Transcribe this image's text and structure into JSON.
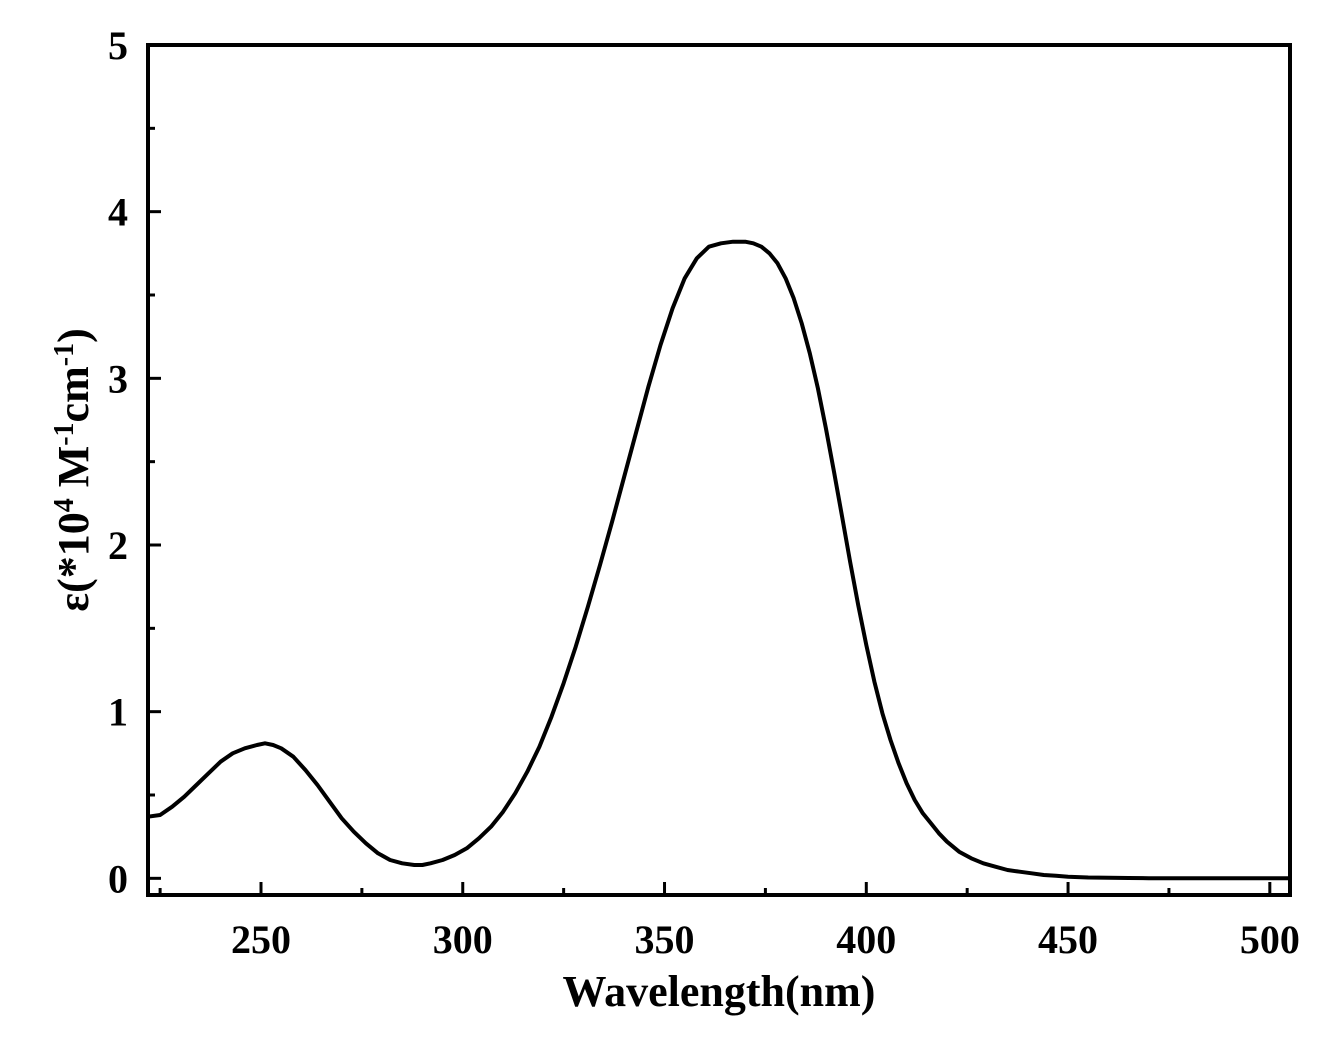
{
  "chart_data": {
    "type": "line",
    "title": "",
    "xlabel": "Wavelength(nm)",
    "ylabel": {
      "parts": [
        {
          "text": "ε(*10",
          "sup": false
        },
        {
          "text": "4",
          "sup": true
        },
        {
          "text": " M",
          "sup": false
        },
        {
          "text": "-1",
          "sup": true
        },
        {
          "text": "cm",
          "sup": false
        },
        {
          "text": "-1",
          "sup": true
        },
        {
          "text": ")",
          "sup": false
        }
      ]
    },
    "xlim": [
      222,
      505
    ],
    "ylim": [
      -0.1,
      5
    ],
    "xticks": [
      250,
      300,
      350,
      400,
      450,
      500
    ],
    "xtick_labels": [
      "250",
      "300",
      "350",
      "400",
      "450",
      "500"
    ],
    "xminor_ticks": [
      225,
      275,
      325,
      375,
      425,
      475
    ],
    "yticks": [
      0,
      1,
      2,
      3,
      4,
      5
    ],
    "ytick_labels": [
      "0",
      "1",
      "2",
      "3",
      "4",
      "5"
    ],
    "yminor_ticks": [
      0.5,
      1.5,
      2.5,
      3.5,
      4.5
    ],
    "grid": false,
    "legend": "none",
    "line_color": "#000000",
    "series": [
      {
        "x": [
          222,
          225,
          228,
          231,
          234,
          237,
          240,
          243,
          246,
          249,
          251,
          253,
          255,
          258,
          261,
          264,
          267,
          270,
          273,
          276,
          279,
          282,
          285,
          288,
          290,
          292,
          295,
          298,
          301,
          304,
          307,
          310,
          313,
          316,
          319,
          322,
          325,
          328,
          331,
          334,
          337,
          340,
          343,
          346,
          349,
          352,
          355,
          358,
          361,
          364,
          367,
          370,
          372,
          374,
          376,
          378,
          380,
          382,
          384,
          386,
          388,
          390,
          392,
          394,
          396,
          398,
          400,
          402,
          404,
          406,
          408,
          410,
          412,
          414,
          416,
          418,
          420,
          423,
          426,
          429,
          432,
          435,
          438,
          441,
          444,
          447,
          450,
          455,
          460,
          465,
          470,
          480,
          490,
          500,
          505
        ],
        "y": [
          0.37,
          0.38,
          0.43,
          0.49,
          0.56,
          0.63,
          0.7,
          0.75,
          0.78,
          0.8,
          0.81,
          0.8,
          0.78,
          0.73,
          0.65,
          0.56,
          0.46,
          0.36,
          0.28,
          0.21,
          0.15,
          0.11,
          0.09,
          0.08,
          0.08,
          0.09,
          0.11,
          0.14,
          0.18,
          0.24,
          0.31,
          0.4,
          0.51,
          0.64,
          0.79,
          0.97,
          1.17,
          1.39,
          1.63,
          1.88,
          2.14,
          2.41,
          2.68,
          2.95,
          3.2,
          3.42,
          3.6,
          3.72,
          3.79,
          3.81,
          3.82,
          3.82,
          3.81,
          3.79,
          3.75,
          3.69,
          3.6,
          3.48,
          3.33,
          3.15,
          2.94,
          2.7,
          2.44,
          2.17,
          1.9,
          1.64,
          1.4,
          1.18,
          0.99,
          0.83,
          0.69,
          0.57,
          0.47,
          0.39,
          0.33,
          0.27,
          0.22,
          0.16,
          0.12,
          0.09,
          0.07,
          0.05,
          0.04,
          0.03,
          0.02,
          0.015,
          0.01,
          0.005,
          0.003,
          0.002,
          0.001,
          0.0,
          0.0,
          0.0,
          0.0
        ]
      }
    ]
  }
}
